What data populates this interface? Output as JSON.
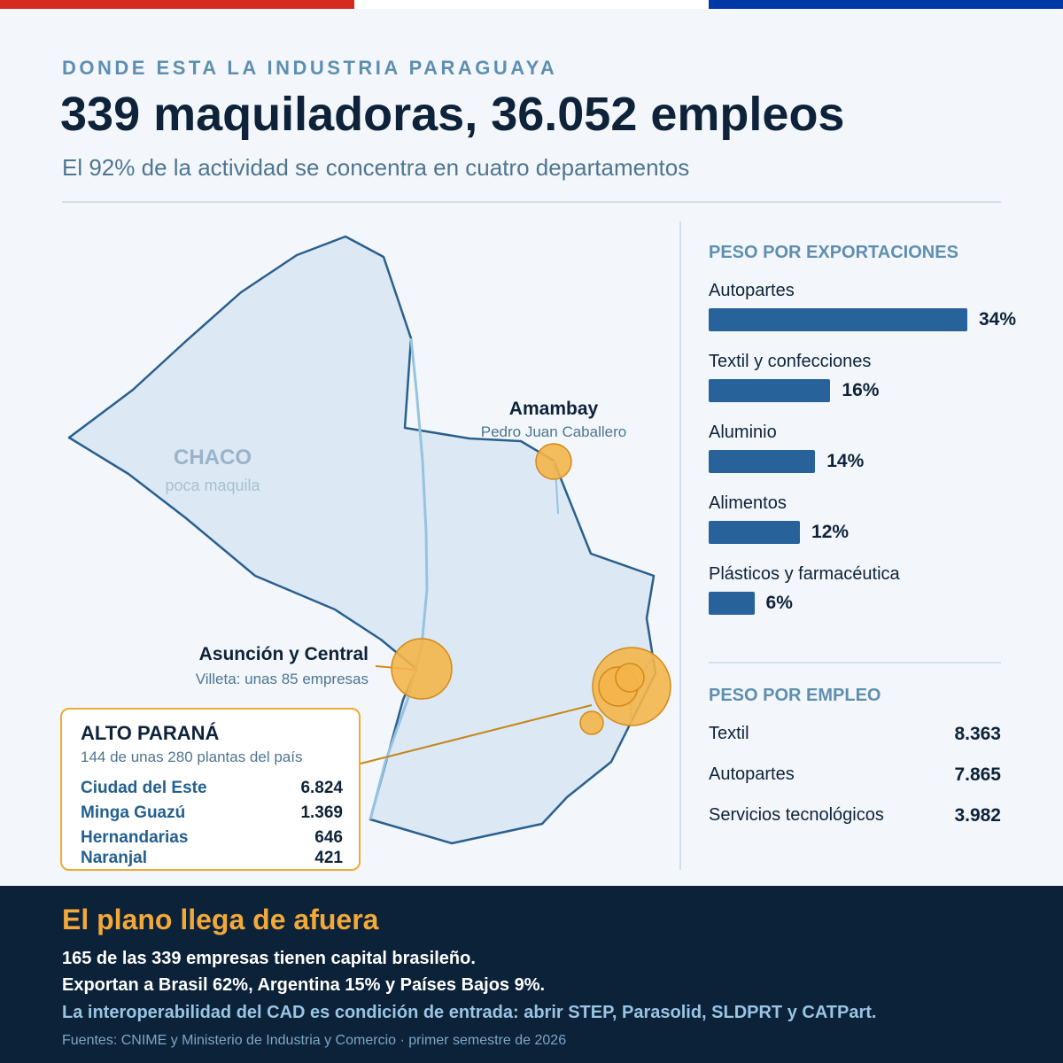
{
  "flag_colors": [
    "#d52b1e",
    "#ffffff",
    "#0038a8"
  ],
  "header": {
    "kicker": "DONDE ESTA LA INDUSTRIA PARAGUAYA",
    "title": "339 maquiladoras, 36.052 empleos",
    "subtitle": "El 92% de la actividad se concentra en cuatro departamentos"
  },
  "map": {
    "chaco": {
      "name": "CHACO",
      "note": "poca maquila"
    },
    "amambay": {
      "name": "Amambay",
      "city": "Pedro Juan Caballero"
    },
    "central": {
      "name": "Asunción y Central",
      "note": "Villeta: unas 85 empresas"
    },
    "alto_parana": {
      "name": "ALTO PARANÁ",
      "note": "144 de unas 280 plantas del país",
      "cities": [
        {
          "name": "Ciudad del Este",
          "value": "6.824"
        },
        {
          "name": "Minga Guazú",
          "value": "1.369"
        },
        {
          "name": "Hernandarias",
          "value": "646"
        },
        {
          "name": "Naranjal",
          "value": "421"
        }
      ]
    },
    "colors": {
      "land": "#dce9f4",
      "border": "#2a5f8e",
      "river": "#95c3e2",
      "bubble": "#f3b54a",
      "bubble_stroke": "#d48a1a"
    }
  },
  "exports": {
    "title": "PESO POR EXPORTACIONES",
    "items": [
      {
        "label": "Autopartes",
        "value": 34,
        "display": "34%"
      },
      {
        "label": "Textil y confecciones",
        "value": 16,
        "display": "16%"
      },
      {
        "label": "Aluminio",
        "value": 14,
        "display": "14%"
      },
      {
        "label": "Alimentos",
        "value": 12,
        "display": "12%"
      },
      {
        "label": "Plásticos y farmacéutica",
        "value": 6,
        "display": "6%"
      }
    ]
  },
  "employment": {
    "title": "PESO POR EMPLEO",
    "items": [
      {
        "label": "Textil",
        "value": "8.363"
      },
      {
        "label": "Autopartes",
        "value": "7.865"
      },
      {
        "label": "Servicios tecnológicos",
        "value": "3.982"
      }
    ]
  },
  "footer": {
    "title": "El plano llega de afuera",
    "line1": "165 de las 339 empresas tienen capital brasileño.",
    "line2": "Exportan a Brasil 62%, Argentina 15% y Países Bajos 9%.",
    "line3": "La interoperabilidad del CAD es condición de entrada: abrir STEP, Parasolid, SLDPRT y CATPart.",
    "source": "Fuentes: CNIME y Ministerio de Industria y Comercio · primer semestre de 2026"
  }
}
